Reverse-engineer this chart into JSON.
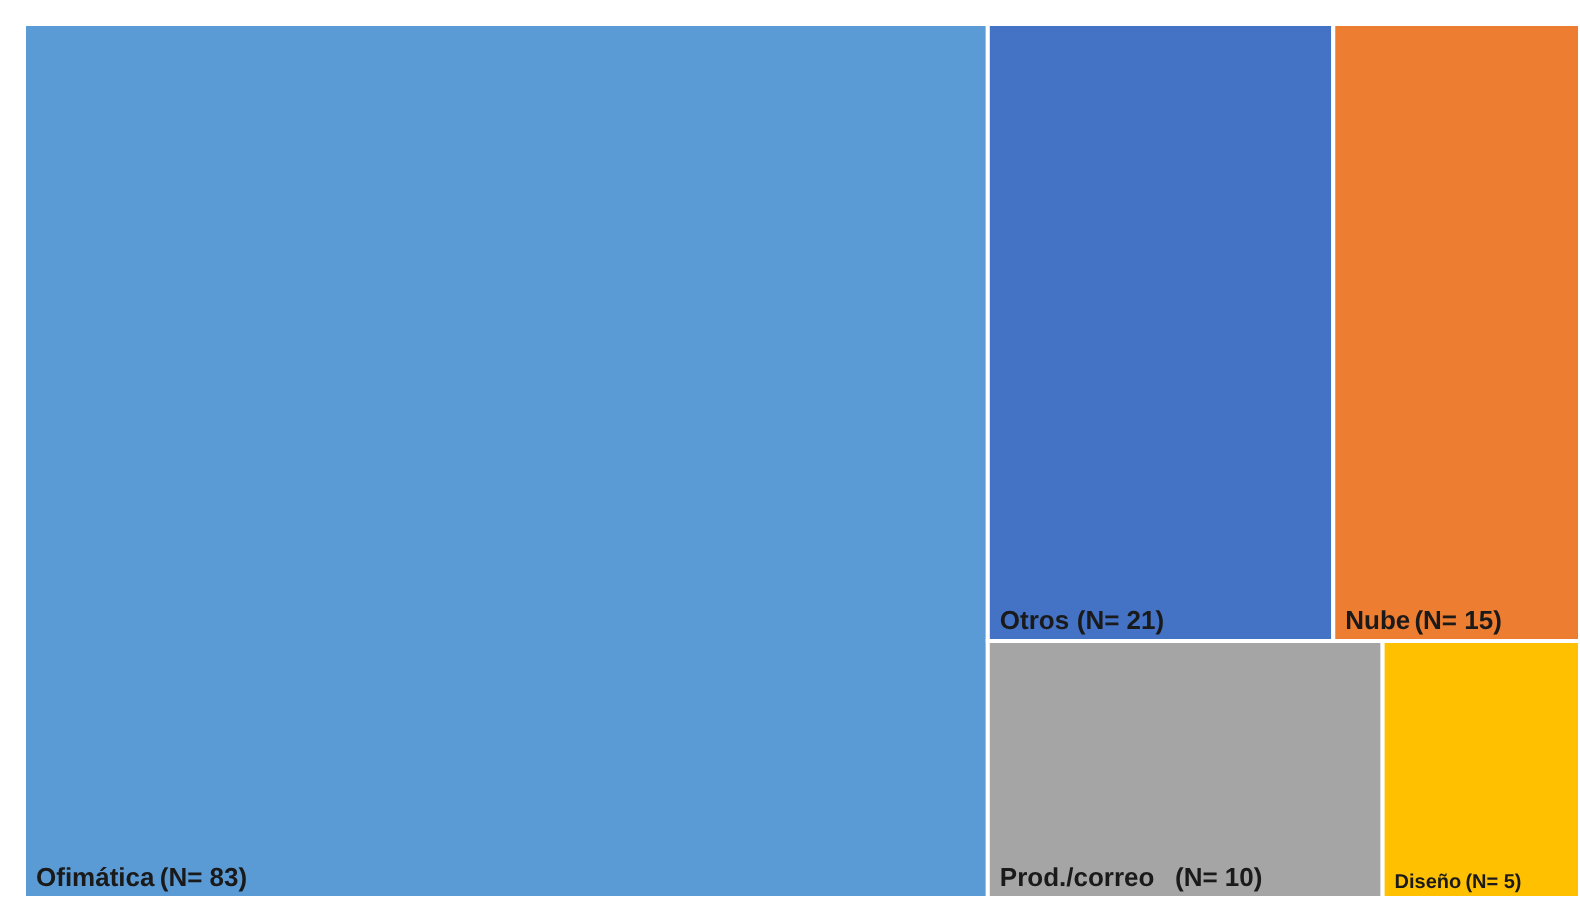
{
  "chart_data": {
    "type": "other",
    "categories": [
      "Ofimática",
      "Otros",
      "Nube",
      "Prod./correo",
      "Diseño"
    ],
    "values": [
      83,
      21,
      15,
      10,
      5
    ],
    "value_labels": [
      "(N= 83)",
      "(N= 21)",
      "(N= 15)",
      "(N= 10)",
      "(N= 5)"
    ],
    "colors": [
      "#5b9bd5",
      "#4472c4",
      "#ed7d31",
      "#a5a5a5",
      "#ffc000"
    ]
  }
}
